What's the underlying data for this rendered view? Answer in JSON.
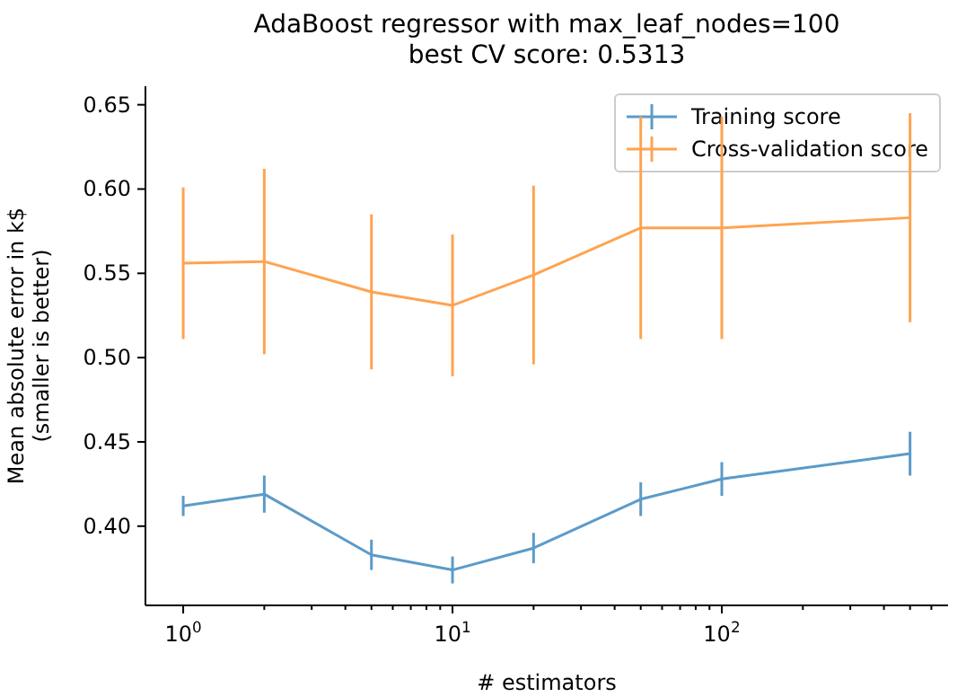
{
  "chart_data": {
    "type": "line",
    "title": "AdaBoost regressor with max_leaf_nodes=100\nbest CV score: 0.5313",
    "xlabel": "# estimators",
    "ylabel": "Mean absolute error in k$\n(smaller is better)",
    "log": "x",
    "x": [
      1,
      2,
      5,
      10,
      20,
      50,
      100,
      500
    ],
    "series": [
      {
        "name": "Training score",
        "color": "#5b9bc9",
        "values": [
          0.412,
          0.419,
          0.383,
          0.374,
          0.387,
          0.416,
          0.428,
          0.443
        ],
        "errors": [
          0.006,
          0.011,
          0.009,
          0.008,
          0.009,
          0.01,
          0.01,
          0.013
        ]
      },
      {
        "name": "Cross-validation score",
        "color": "#ffa351",
        "values": [
          0.556,
          0.557,
          0.539,
          0.531,
          0.549,
          0.577,
          0.577,
          0.583
        ],
        "errors": [
          0.045,
          0.055,
          0.046,
          0.042,
          0.053,
          0.066,
          0.066,
          0.062
        ]
      }
    ],
    "xlim": [
      0.724,
      692
    ],
    "xticks": [
      {
        "value": 1,
        "label": "10$^{0}$"
      },
      {
        "value": 2,
        "label": null
      },
      {
        "value": 3,
        "label": null
      },
      {
        "value": 4,
        "label": null
      },
      {
        "value": 5,
        "label": null
      },
      {
        "value": 6,
        "label": null
      },
      {
        "value": 7,
        "label": null
      },
      {
        "value": 8,
        "label": null
      },
      {
        "value": 9,
        "label": null
      },
      {
        "value": 10,
        "label": "10$^{1}$"
      },
      {
        "value": 20,
        "label": null
      },
      {
        "value": 30,
        "label": null
      },
      {
        "value": 40,
        "label": null
      },
      {
        "value": 50,
        "label": null
      },
      {
        "value": 60,
        "label": null
      },
      {
        "value": 70,
        "label": null
      },
      {
        "value": 80,
        "label": null
      },
      {
        "value": 90,
        "label": null
      },
      {
        "value": 100,
        "label": "10$^{2}$"
      },
      {
        "value": 200,
        "label": null
      },
      {
        "value": 300,
        "label": null
      },
      {
        "value": 400,
        "label": null
      },
      {
        "value": 500,
        "label": null
      },
      {
        "value": 600,
        "label": null
      }
    ],
    "ylim": [
      0.353,
      0.661
    ],
    "yticks": [
      {
        "value": 0.4,
        "label": "0.40"
      },
      {
        "value": 0.45,
        "label": "0.45"
      },
      {
        "value": 0.5,
        "label": "0.50"
      },
      {
        "value": 0.55,
        "label": "0.55"
      },
      {
        "value": 0.6,
        "label": "0.60"
      },
      {
        "value": 0.65,
        "label": "0.65"
      }
    ],
    "grid": false,
    "legend": "top right"
  }
}
